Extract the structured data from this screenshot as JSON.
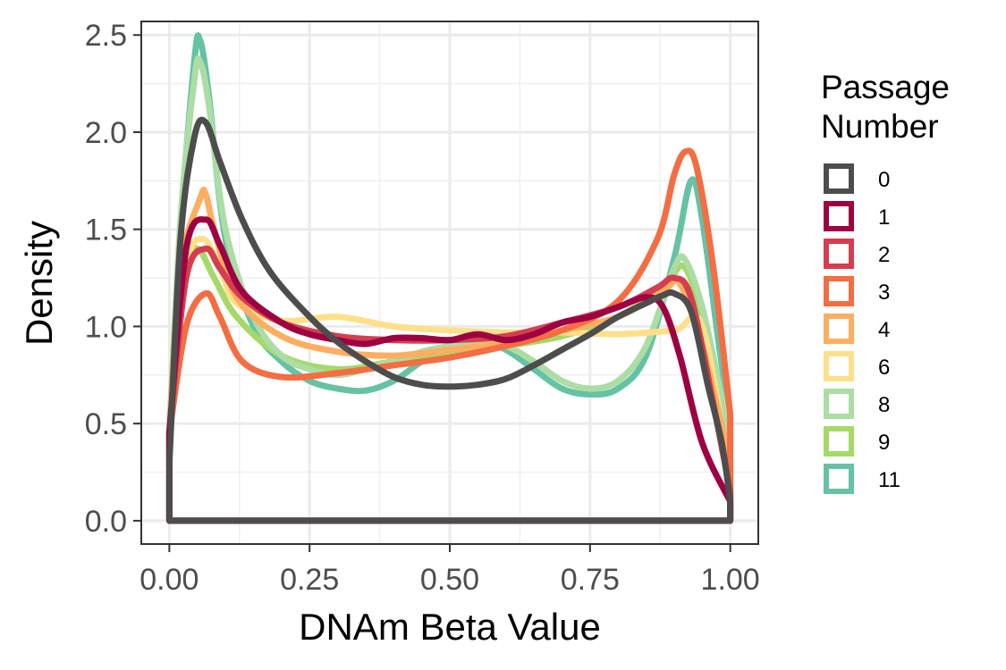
{
  "chart_data": {
    "type": "area",
    "xlabel": "DNAm Beta Value",
    "ylabel": "Density",
    "xlim": [
      -0.05,
      1.05
    ],
    "ylim": [
      -0.12,
      2.57
    ],
    "x_ticks": [
      0,
      0.25,
      0.5,
      0.75,
      1
    ],
    "x_tick_labels": [
      "0.00",
      "0.25",
      "0.50",
      "0.75",
      "1.00"
    ],
    "y_ticks": [
      0,
      0.5,
      1,
      1.5,
      2,
      2.5
    ],
    "y_tick_labels": [
      "0.0",
      "0.5",
      "1.0",
      "1.5",
      "2.0",
      "2.5"
    ],
    "grid": true,
    "legend": {
      "title_lines": [
        "Passage",
        "Number"
      ],
      "placement": "right"
    },
    "series": [
      {
        "name": "11",
        "color": "#66c2a5",
        "points": [
          [
            0,
            0.45
          ],
          [
            0.02,
            1.5
          ],
          [
            0.045,
            2.38
          ],
          [
            0.055,
            2.47
          ],
          [
            0.07,
            2.2
          ],
          [
            0.1,
            1.45
          ],
          [
            0.15,
            1.0
          ],
          [
            0.2,
            0.82
          ],
          [
            0.25,
            0.72
          ],
          [
            0.3,
            0.68
          ],
          [
            0.35,
            0.67
          ],
          [
            0.4,
            0.72
          ],
          [
            0.45,
            0.82
          ],
          [
            0.5,
            0.9
          ],
          [
            0.55,
            0.93
          ],
          [
            0.6,
            0.88
          ],
          [
            0.65,
            0.78
          ],
          [
            0.7,
            0.68
          ],
          [
            0.75,
            0.65
          ],
          [
            0.8,
            0.68
          ],
          [
            0.85,
            0.85
          ],
          [
            0.9,
            1.35
          ],
          [
            0.93,
            1.75
          ],
          [
            0.95,
            1.55
          ],
          [
            0.98,
            0.9
          ],
          [
            1,
            0.5
          ]
        ]
      },
      {
        "name": "9",
        "color": "#a6d96a",
        "points": [
          [
            0,
            0.45
          ],
          [
            0.02,
            1.3
          ],
          [
            0.05,
            1.4
          ],
          [
            0.08,
            1.25
          ],
          [
            0.12,
            1.05
          ],
          [
            0.2,
            0.85
          ],
          [
            0.3,
            0.78
          ],
          [
            0.4,
            0.82
          ],
          [
            0.5,
            0.85
          ],
          [
            0.6,
            0.9
          ],
          [
            0.7,
            0.95
          ],
          [
            0.8,
            1.05
          ],
          [
            0.88,
            1.2
          ],
          [
            0.92,
            1.3
          ],
          [
            0.96,
            0.9
          ],
          [
            1,
            0.2
          ]
        ]
      },
      {
        "name": "8",
        "color": "#abdda4",
        "points": [
          [
            0,
            0.45
          ],
          [
            0.02,
            1.55
          ],
          [
            0.045,
            2.28
          ],
          [
            0.055,
            2.36
          ],
          [
            0.07,
            2.15
          ],
          [
            0.1,
            1.5
          ],
          [
            0.15,
            1.05
          ],
          [
            0.2,
            0.85
          ],
          [
            0.25,
            0.78
          ],
          [
            0.3,
            0.75
          ],
          [
            0.35,
            0.78
          ],
          [
            0.4,
            0.82
          ],
          [
            0.45,
            0.87
          ],
          [
            0.5,
            0.9
          ],
          [
            0.55,
            0.92
          ],
          [
            0.6,
            0.9
          ],
          [
            0.65,
            0.82
          ],
          [
            0.7,
            0.72
          ],
          [
            0.75,
            0.68
          ],
          [
            0.8,
            0.72
          ],
          [
            0.85,
            0.9
          ],
          [
            0.9,
            1.3
          ],
          [
            0.92,
            1.34
          ],
          [
            0.95,
            1.1
          ],
          [
            0.98,
            0.7
          ],
          [
            1,
            0.4
          ]
        ]
      },
      {
        "name": "6",
        "color": "#fee08b",
        "points": [
          [
            0,
            0.45
          ],
          [
            0.03,
            1.3
          ],
          [
            0.06,
            1.45
          ],
          [
            0.09,
            1.3
          ],
          [
            0.12,
            1.12
          ],
          [
            0.2,
            1.03
          ],
          [
            0.3,
            1.05
          ],
          [
            0.4,
            1.0
          ],
          [
            0.5,
            0.98
          ],
          [
            0.6,
            0.97
          ],
          [
            0.7,
            0.97
          ],
          [
            0.8,
            0.96
          ],
          [
            0.9,
            0.98
          ],
          [
            0.95,
            1.0
          ],
          [
            1,
            0.2
          ]
        ]
      },
      {
        "name": "4",
        "color": "#fdae61",
        "points": [
          [
            0,
            0.45
          ],
          [
            0.02,
            1.3
          ],
          [
            0.055,
            1.66
          ],
          [
            0.065,
            1.68
          ],
          [
            0.08,
            1.5
          ],
          [
            0.12,
            1.15
          ],
          [
            0.2,
            0.95
          ],
          [
            0.3,
            0.87
          ],
          [
            0.4,
            0.85
          ],
          [
            0.5,
            0.88
          ],
          [
            0.6,
            0.92
          ],
          [
            0.7,
            0.98
          ],
          [
            0.8,
            1.05
          ],
          [
            0.88,
            1.18
          ],
          [
            0.91,
            1.22
          ],
          [
            0.95,
            0.9
          ],
          [
            1,
            0.3
          ]
        ]
      },
      {
        "name": "3",
        "color": "#f46d43",
        "points": [
          [
            0,
            0.45
          ],
          [
            0.03,
            1.0
          ],
          [
            0.065,
            1.17
          ],
          [
            0.09,
            1.05
          ],
          [
            0.13,
            0.82
          ],
          [
            0.2,
            0.74
          ],
          [
            0.3,
            0.76
          ],
          [
            0.4,
            0.8
          ],
          [
            0.5,
            0.84
          ],
          [
            0.6,
            0.9
          ],
          [
            0.7,
            0.98
          ],
          [
            0.8,
            1.13
          ],
          [
            0.87,
            1.45
          ],
          [
            0.9,
            1.78
          ],
          [
            0.92,
            1.9
          ],
          [
            0.94,
            1.82
          ],
          [
            0.97,
            1.3
          ],
          [
            1,
            0.55
          ]
        ]
      },
      {
        "name": "2",
        "color": "#d53e4f",
        "points": [
          [
            0,
            0.45
          ],
          [
            0.03,
            1.25
          ],
          [
            0.065,
            1.4
          ],
          [
            0.09,
            1.3
          ],
          [
            0.13,
            1.15
          ],
          [
            0.2,
            1.02
          ],
          [
            0.3,
            0.95
          ],
          [
            0.4,
            0.93
          ],
          [
            0.5,
            0.93
          ],
          [
            0.6,
            0.95
          ],
          [
            0.7,
            1.02
          ],
          [
            0.8,
            1.1
          ],
          [
            0.87,
            1.2
          ],
          [
            0.9,
            1.25
          ],
          [
            0.93,
            1.15
          ],
          [
            0.97,
            0.6
          ],
          [
            1,
            0.15
          ]
        ]
      },
      {
        "name": "1",
        "color": "#9e0142",
        "points": [
          [
            0,
            0.45
          ],
          [
            0.03,
            1.4
          ],
          [
            0.065,
            1.55
          ],
          [
            0.09,
            1.42
          ],
          [
            0.13,
            1.18
          ],
          [
            0.2,
            1.02
          ],
          [
            0.25,
            0.96
          ],
          [
            0.3,
            0.93
          ],
          [
            0.35,
            0.91
          ],
          [
            0.4,
            0.94
          ],
          [
            0.45,
            0.94
          ],
          [
            0.5,
            0.93
          ],
          [
            0.55,
            0.96
          ],
          [
            0.6,
            0.93
          ],
          [
            0.65,
            0.96
          ],
          [
            0.7,
            1.02
          ],
          [
            0.75,
            1.05
          ],
          [
            0.8,
            1.1
          ],
          [
            0.85,
            1.15
          ],
          [
            0.88,
            1.1
          ],
          [
            0.91,
            0.85
          ],
          [
            0.95,
            0.4
          ],
          [
            1,
            0.1
          ]
        ]
      },
      {
        "name": "0",
        "color": "#4d4d4d",
        "points": [
          [
            0,
            0.3
          ],
          [
            0.02,
            1.45
          ],
          [
            0.045,
            1.98
          ],
          [
            0.065,
            2.05
          ],
          [
            0.09,
            1.85
          ],
          [
            0.13,
            1.55
          ],
          [
            0.18,
            1.28
          ],
          [
            0.25,
            1.05
          ],
          [
            0.3,
            0.92
          ],
          [
            0.35,
            0.82
          ],
          [
            0.4,
            0.74
          ],
          [
            0.45,
            0.7
          ],
          [
            0.5,
            0.69
          ],
          [
            0.55,
            0.7
          ],
          [
            0.6,
            0.73
          ],
          [
            0.65,
            0.8
          ],
          [
            0.7,
            0.88
          ],
          [
            0.75,
            0.96
          ],
          [
            0.8,
            1.05
          ],
          [
            0.85,
            1.12
          ],
          [
            0.88,
            1.16
          ],
          [
            0.9,
            1.17
          ],
          [
            0.93,
            1.08
          ],
          [
            0.96,
            0.7
          ],
          [
            0.985,
            0.4
          ],
          [
            1,
            0.1
          ]
        ]
      }
    ]
  }
}
